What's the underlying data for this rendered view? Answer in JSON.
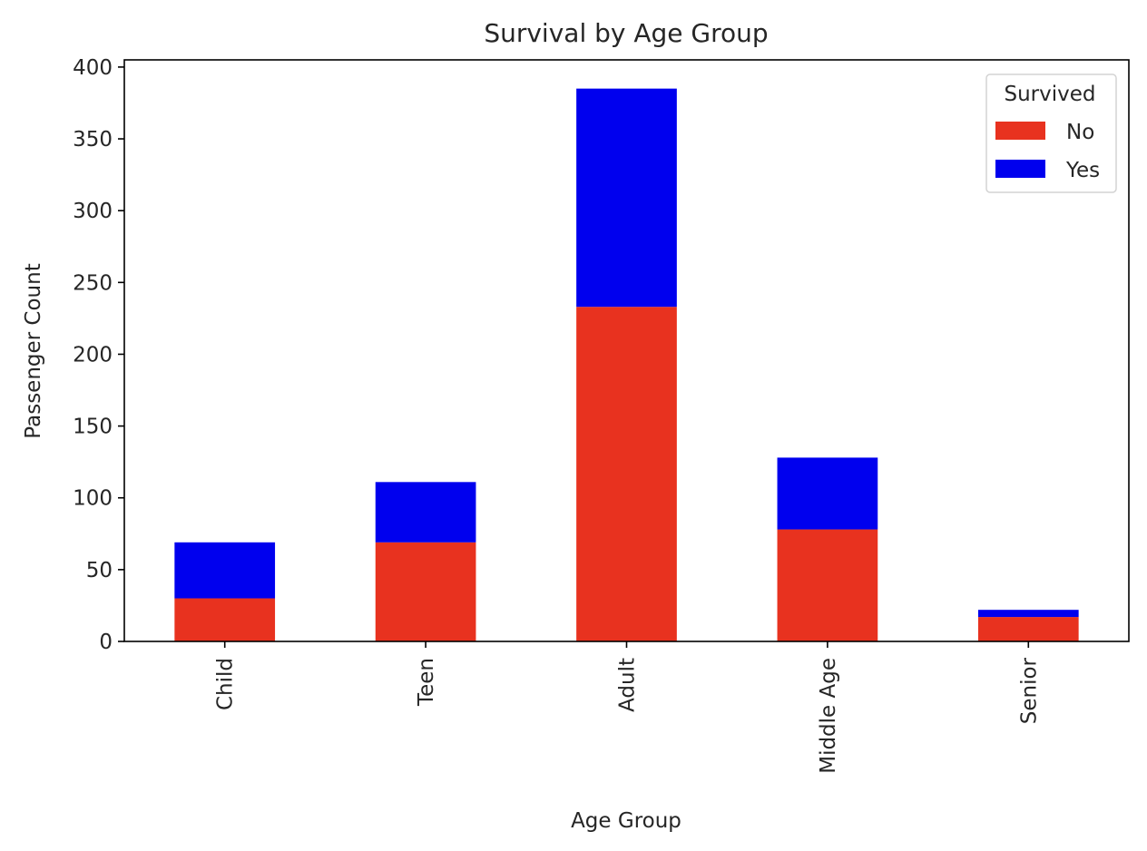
{
  "chart_data": {
    "type": "bar",
    "stacked": true,
    "orientation": "vertical",
    "title": "Survival by Age Group",
    "xlabel": "Age Group",
    "ylabel": "Passenger Count",
    "categories": [
      "Child",
      "Teen",
      "Adult",
      "Middle Age",
      "Senior"
    ],
    "series": [
      {
        "name": "No",
        "color": "#e8321f",
        "values": [
          30,
          69,
          233,
          78,
          17
        ]
      },
      {
        "name": "Yes",
        "color": "#0000ee",
        "values": [
          39,
          42,
          152,
          50,
          5
        ]
      }
    ],
    "ylim": [
      0,
      405
    ],
    "yticks": [
      0,
      50,
      100,
      150,
      200,
      250,
      300,
      350,
      400
    ],
    "x_tick_rotation": 90,
    "grid": false,
    "legend": {
      "title": "Survived",
      "placement": "top-right"
    }
  }
}
